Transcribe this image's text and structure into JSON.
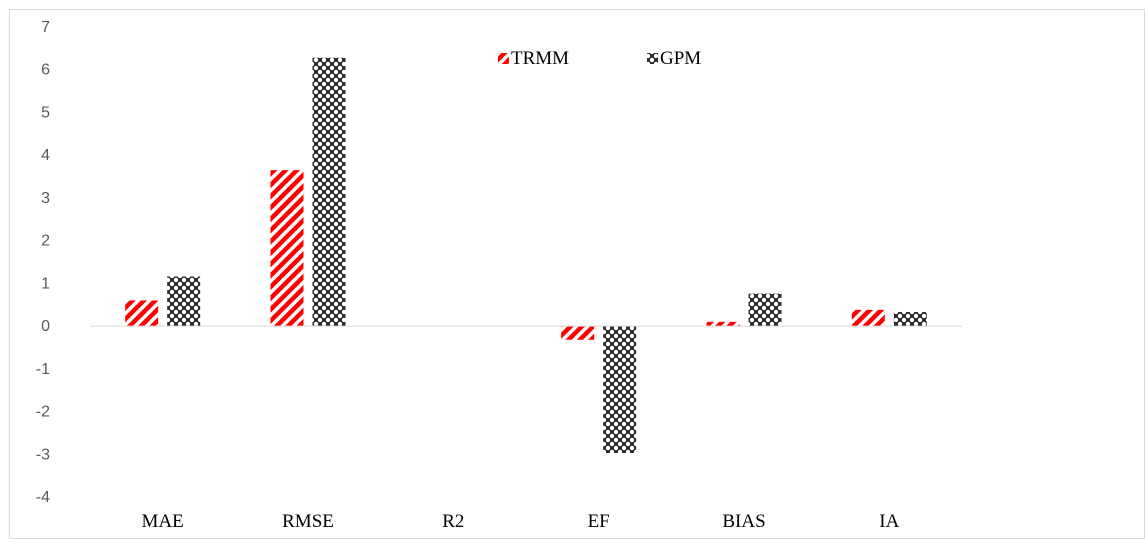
{
  "chart_data": {
    "type": "bar",
    "title": "",
    "xlabel": "",
    "ylabel": "",
    "categories": [
      "MAE",
      "RMSE",
      "R2",
      "EF",
      "BIAS",
      "IA"
    ],
    "series": [
      {
        "name": "TRMM",
        "values": [
          0.6,
          3.65,
          0,
          -0.32,
          0.1,
          0.38
        ],
        "color": "#ff0000",
        "pattern": "diagonal-stripes"
      },
      {
        "name": "GPM",
        "values": [
          1.16,
          6.28,
          0,
          -2.97,
          0.76,
          0.33
        ],
        "color": "#262626",
        "pattern": "checkered"
      }
    ],
    "ylim": [
      -4,
      7
    ],
    "yticks": [
      7,
      6,
      5,
      4,
      3,
      2,
      1,
      0,
      -1,
      -2,
      -3,
      -4
    ],
    "grid": false,
    "legend": "top-center"
  }
}
